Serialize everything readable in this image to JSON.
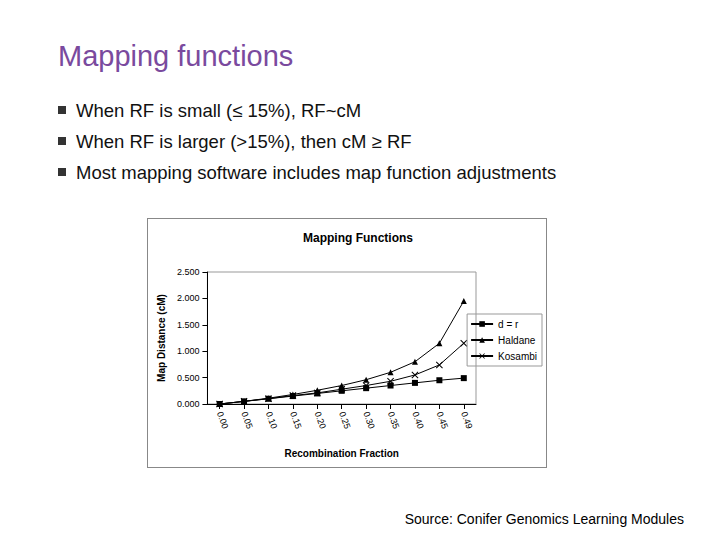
{
  "slide": {
    "title": "Mapping functions",
    "bullets": [
      "When RF is small (≤ 15%), RF~cM",
      "When RF is larger (>15%), then cM ≥ RF",
      "Most mapping software includes map function adjustments"
    ],
    "source": "Source: Conifer Genomics Learning Modules"
  },
  "chart_data": {
    "type": "line",
    "title": "Mapping Functions",
    "x_label": "Recombination Fraction",
    "y_label": "Map Distance (cM)",
    "categories": [
      "0.00",
      "0.05",
      "0.10",
      "0.15",
      "0.20",
      "0.25",
      "0.30",
      "0.35",
      "0.40",
      "0.45",
      "0.49"
    ],
    "series": [
      {
        "name": "d = r",
        "color": "#000000",
        "marker": "square",
        "line_style": "solid",
        "values": [
          0,
          0.05,
          0.1,
          0.15,
          0.2,
          0.25,
          0.3,
          0.35,
          0.4,
          0.45,
          0.49
        ]
      },
      {
        "name": "Haldane",
        "color": "#000000",
        "marker": "triangle",
        "line_style": "solid",
        "values": [
          0,
          0.05,
          0.11,
          0.18,
          0.26,
          0.35,
          0.46,
          0.6,
          0.8,
          1.15,
          1.95
        ]
      },
      {
        "name": "Kosambi",
        "color": "#000000",
        "marker": "x",
        "line_style": "solid",
        "values": [
          0,
          0.05,
          0.1,
          0.16,
          0.21,
          0.28,
          0.35,
          0.43,
          0.55,
          0.74,
          1.15
        ]
      }
    ],
    "ylim": [
      0,
      2.5
    ],
    "yticks": [
      {
        "value": 0,
        "label": "0.000"
      },
      {
        "value": 0.5,
        "label": "0.500"
      },
      {
        "value": 1,
        "label": "1.000"
      },
      {
        "value": 1.5,
        "label": "1.500"
      },
      {
        "value": 2,
        "label": "2.000"
      },
      {
        "value": 2.5,
        "label": "2.500"
      }
    ],
    "grid": false,
    "legend": "right"
  }
}
